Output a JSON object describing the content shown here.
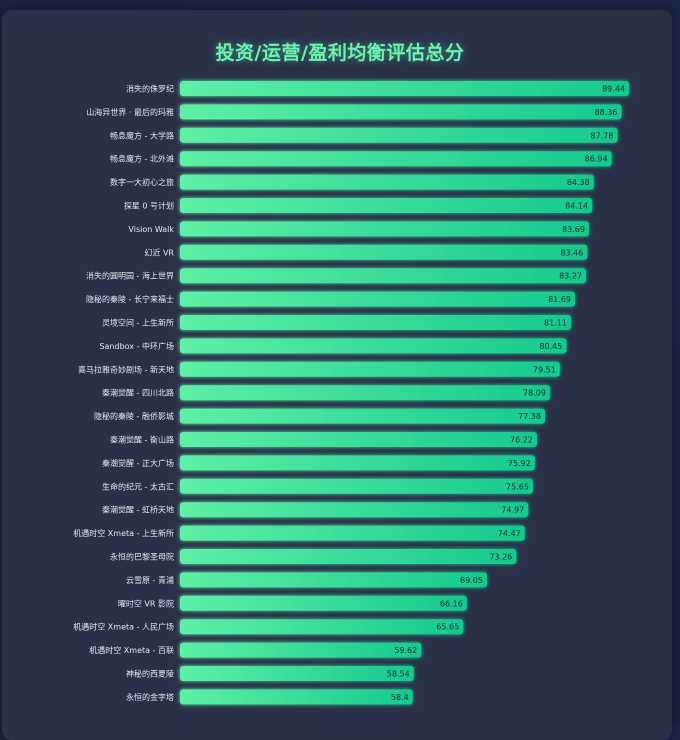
{
  "chart_data": {
    "type": "bar",
    "orientation": "horizontal",
    "title": "投资/运营/盈利均衡评估总分",
    "categories": [
      "消失的侏罗纪",
      "山海异世界 · 最后的玛雅",
      "畅息魔方 - 大学路",
      "畅息魔方 - 北外滩",
      "数字一大初心之旅",
      "探星 0 号计划",
      "Vision Walk",
      "幻近 VR",
      "消失的圆明园 - 海上世界",
      "隐秘的秦陵 - 长宁来福士",
      "灵境空间 - 上生新所",
      "Sandbox - 中环广场",
      "喜马拉雅奇妙剧场 - 新天地",
      "秦潮觉醒 - 四川北路",
      "隐秘的秦陵 - 融侨影城",
      "秦潮觉醒 - 衡山路",
      "秦潮觉醒 - 正大广场",
      "生命的纪元 - 太古汇",
      "秦潮觉醒 - 虹桥天地",
      "机遇时空 Xmeta - 上生新所",
      "永恒的巴黎圣母院",
      "云雪原 - 青浦",
      "曜时空 VR 影院",
      "机遇时空 Xmeta - 人民广场",
      "机遇时空 Xmeta - 百联",
      "神秘的西夏陵",
      "永恒的金字塔"
    ],
    "values": [
      89.44,
      88.36,
      87.78,
      86.94,
      84.38,
      84.14,
      83.69,
      83.46,
      83.27,
      81.69,
      81.11,
      80.45,
      79.51,
      78.09,
      77.38,
      76.22,
      75.92,
      75.65,
      74.97,
      74.47,
      73.26,
      69.05,
      66.16,
      65.65,
      59.62,
      58.54,
      58.4
    ],
    "colors": {
      "bar_start": "#5ef0a6",
      "bar_end": "#16c98e",
      "title": "#6ff2b2",
      "label": "#e6e9f2",
      "panel": "#2a3048"
    }
  }
}
